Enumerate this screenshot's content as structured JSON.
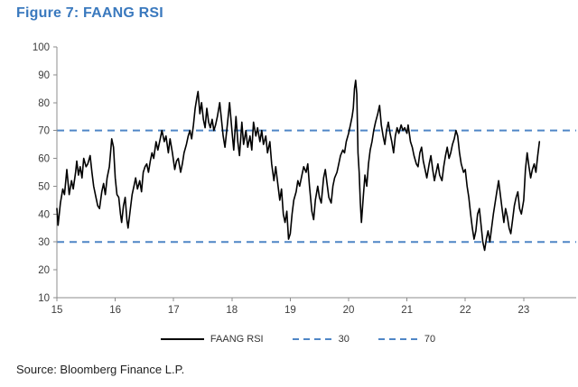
{
  "title": "Figure 7: FAANG RSI",
  "source": "Source: Bloomberg Finance L.P.",
  "legend": {
    "series_label": "FAANG RSI",
    "lower_label": "30",
    "upper_label": "70"
  },
  "colors": {
    "title": "#3A79BE",
    "series": "#000000",
    "threshold": "#4F86C6",
    "axis": "#8C8C8C",
    "tick_label": "#3d3d3d"
  },
  "chart_data": {
    "type": "line",
    "title": "FAANG RSI",
    "grid": false,
    "legend_position": "bottom",
    "x_axis": {
      "min": 15,
      "max": 23.9,
      "ticks": [
        15,
        16,
        17,
        18,
        19,
        20,
        21,
        22,
        23
      ]
    },
    "y_axis": {
      "min": 10,
      "max": 100,
      "ticks": [
        10,
        20,
        30,
        40,
        50,
        60,
        70,
        80,
        90,
        100
      ]
    },
    "thresholds": [
      {
        "value": 30,
        "label": "30"
      },
      {
        "value": 70,
        "label": "70"
      }
    ],
    "series": [
      {
        "name": "FAANG RSI",
        "points": [
          [
            15.0,
            42
          ],
          [
            15.02,
            36
          ],
          [
            15.06,
            44
          ],
          [
            15.1,
            49
          ],
          [
            15.13,
            47
          ],
          [
            15.17,
            56
          ],
          [
            15.21,
            47
          ],
          [
            15.25,
            52
          ],
          [
            15.28,
            49
          ],
          [
            15.32,
            55
          ],
          [
            15.34,
            59
          ],
          [
            15.37,
            54
          ],
          [
            15.4,
            57
          ],
          [
            15.43,
            53
          ],
          [
            15.46,
            60
          ],
          [
            15.5,
            57
          ],
          [
            15.53,
            58
          ],
          [
            15.57,
            61
          ],
          [
            15.6,
            55
          ],
          [
            15.63,
            50
          ],
          [
            15.66,
            47
          ],
          [
            15.7,
            43
          ],
          [
            15.73,
            42
          ],
          [
            15.77,
            48
          ],
          [
            15.8,
            51
          ],
          [
            15.83,
            47
          ],
          [
            15.86,
            53
          ],
          [
            15.9,
            57
          ],
          [
            15.94,
            67
          ],
          [
            15.97,
            64
          ],
          [
            16.0,
            53
          ],
          [
            16.03,
            47
          ],
          [
            16.06,
            46
          ],
          [
            16.09,
            40
          ],
          [
            16.11,
            37
          ],
          [
            16.14,
            43
          ],
          [
            16.17,
            46
          ],
          [
            16.2,
            38
          ],
          [
            16.22,
            35
          ],
          [
            16.26,
            42
          ],
          [
            16.29,
            47
          ],
          [
            16.32,
            50
          ],
          [
            16.35,
            53
          ],
          [
            16.38,
            49
          ],
          [
            16.42,
            52
          ],
          [
            16.45,
            48
          ],
          [
            16.48,
            55
          ],
          [
            16.51,
            57
          ],
          [
            16.54,
            58
          ],
          [
            16.57,
            55
          ],
          [
            16.6,
            59
          ],
          [
            16.63,
            62
          ],
          [
            16.66,
            60
          ],
          [
            16.7,
            66
          ],
          [
            16.73,
            63
          ],
          [
            16.77,
            67
          ],
          [
            16.8,
            70
          ],
          [
            16.84,
            66
          ],
          [
            16.87,
            68
          ],
          [
            16.91,
            62
          ],
          [
            16.94,
            67
          ],
          [
            16.98,
            62
          ],
          [
            17.02,
            56
          ],
          [
            17.05,
            59
          ],
          [
            17.08,
            60
          ],
          [
            17.12,
            55
          ],
          [
            17.15,
            58
          ],
          [
            17.18,
            62
          ],
          [
            17.22,
            65
          ],
          [
            17.25,
            68
          ],
          [
            17.28,
            70
          ],
          [
            17.31,
            67
          ],
          [
            17.34,
            72
          ],
          [
            17.37,
            78
          ],
          [
            17.4,
            82
          ],
          [
            17.42,
            84
          ],
          [
            17.45,
            76
          ],
          [
            17.48,
            80
          ],
          [
            17.51,
            74
          ],
          [
            17.54,
            71
          ],
          [
            17.57,
            78
          ],
          [
            17.6,
            73
          ],
          [
            17.63,
            71
          ],
          [
            17.66,
            74
          ],
          [
            17.69,
            70
          ],
          [
            17.72,
            72
          ],
          [
            17.75,
            75
          ],
          [
            17.79,
            80
          ],
          [
            17.82,
            74
          ],
          [
            17.85,
            68
          ],
          [
            17.88,
            64
          ],
          [
            17.92,
            72
          ],
          [
            17.96,
            80
          ],
          [
            18.0,
            70
          ],
          [
            18.03,
            63
          ],
          [
            18.07,
            75
          ],
          [
            18.1,
            66
          ],
          [
            18.13,
            61
          ],
          [
            18.17,
            73
          ],
          [
            18.2,
            65
          ],
          [
            18.24,
            70
          ],
          [
            18.27,
            64
          ],
          [
            18.31,
            68
          ],
          [
            18.34,
            63
          ],
          [
            18.37,
            73
          ],
          [
            18.41,
            68
          ],
          [
            18.44,
            71
          ],
          [
            18.48,
            66
          ],
          [
            18.51,
            70
          ],
          [
            18.54,
            65
          ],
          [
            18.58,
            68
          ],
          [
            18.61,
            62
          ],
          [
            18.65,
            66
          ],
          [
            18.68,
            58
          ],
          [
            18.72,
            52
          ],
          [
            18.75,
            57
          ],
          [
            18.79,
            50
          ],
          [
            18.82,
            45
          ],
          [
            18.85,
            49
          ],
          [
            18.88,
            40
          ],
          [
            18.91,
            37
          ],
          [
            18.94,
            41
          ],
          [
            18.97,
            31
          ],
          [
            19.0,
            33
          ],
          [
            19.03,
            40
          ],
          [
            19.06,
            45
          ],
          [
            19.1,
            48
          ],
          [
            19.13,
            52
          ],
          [
            19.16,
            50
          ],
          [
            19.2,
            54
          ],
          [
            19.23,
            57
          ],
          [
            19.27,
            55
          ],
          [
            19.3,
            58
          ],
          [
            19.33,
            50
          ],
          [
            19.37,
            41
          ],
          [
            19.4,
            38
          ],
          [
            19.43,
            45
          ],
          [
            19.47,
            50
          ],
          [
            19.5,
            46
          ],
          [
            19.53,
            44
          ],
          [
            19.57,
            53
          ],
          [
            19.6,
            56
          ],
          [
            19.63,
            51
          ],
          [
            19.66,
            46
          ],
          [
            19.7,
            44
          ],
          [
            19.73,
            50
          ],
          [
            19.76,
            53
          ],
          [
            19.8,
            55
          ],
          [
            19.83,
            58
          ],
          [
            19.86,
            61
          ],
          [
            19.9,
            63
          ],
          [
            19.93,
            62
          ],
          [
            19.96,
            66
          ],
          [
            20.0,
            69
          ],
          [
            20.03,
            72
          ],
          [
            20.06,
            75
          ],
          [
            20.08,
            78
          ],
          [
            20.1,
            85
          ],
          [
            20.12,
            88
          ],
          [
            20.14,
            83
          ],
          [
            20.16,
            62
          ],
          [
            20.18,
            55
          ],
          [
            20.2,
            44
          ],
          [
            20.22,
            37
          ],
          [
            20.25,
            46
          ],
          [
            20.28,
            54
          ],
          [
            20.31,
            50
          ],
          [
            20.34,
            58
          ],
          [
            20.37,
            63
          ],
          [
            20.4,
            66
          ],
          [
            20.43,
            70
          ],
          [
            20.46,
            73
          ],
          [
            20.5,
            76
          ],
          [
            20.53,
            79
          ],
          [
            20.56,
            72
          ],
          [
            20.59,
            68
          ],
          [
            20.62,
            65
          ],
          [
            20.65,
            70
          ],
          [
            20.68,
            73
          ],
          [
            20.71,
            69
          ],
          [
            20.74,
            66
          ],
          [
            20.77,
            62
          ],
          [
            20.8,
            68
          ],
          [
            20.83,
            71
          ],
          [
            20.86,
            69
          ],
          [
            20.9,
            72
          ],
          [
            20.93,
            70
          ],
          [
            20.96,
            71
          ],
          [
            21.0,
            69
          ],
          [
            21.02,
            72
          ],
          [
            21.06,
            66
          ],
          [
            21.09,
            64
          ],
          [
            21.12,
            61
          ],
          [
            21.16,
            58
          ],
          [
            21.19,
            57
          ],
          [
            21.22,
            62
          ],
          [
            21.25,
            64
          ],
          [
            21.28,
            59
          ],
          [
            21.31,
            56
          ],
          [
            21.34,
            53
          ],
          [
            21.38,
            58
          ],
          [
            21.41,
            61
          ],
          [
            21.44,
            56
          ],
          [
            21.47,
            52
          ],
          [
            21.5,
            55
          ],
          [
            21.53,
            58
          ],
          [
            21.56,
            54
          ],
          [
            21.6,
            52
          ],
          [
            21.63,
            57
          ],
          [
            21.66,
            61
          ],
          [
            21.69,
            64
          ],
          [
            21.72,
            60
          ],
          [
            21.75,
            62
          ],
          [
            21.78,
            65
          ],
          [
            21.81,
            67
          ],
          [
            21.84,
            70
          ],
          [
            21.87,
            68
          ],
          [
            21.9,
            62
          ],
          [
            21.93,
            58
          ],
          [
            21.97,
            55
          ],
          [
            22.0,
            56
          ],
          [
            22.03,
            50
          ],
          [
            22.06,
            46
          ],
          [
            22.09,
            40
          ],
          [
            22.12,
            35
          ],
          [
            22.15,
            31
          ],
          [
            22.18,
            34
          ],
          [
            22.21,
            40
          ],
          [
            22.24,
            42
          ],
          [
            22.27,
            36
          ],
          [
            22.3,
            30
          ],
          [
            22.33,
            27
          ],
          [
            22.36,
            31
          ],
          [
            22.39,
            34
          ],
          [
            22.42,
            30
          ],
          [
            22.45,
            35
          ],
          [
            22.48,
            40
          ],
          [
            22.51,
            44
          ],
          [
            22.54,
            48
          ],
          [
            22.57,
            52
          ],
          [
            22.6,
            47
          ],
          [
            22.63,
            42
          ],
          [
            22.66,
            37
          ],
          [
            22.69,
            42
          ],
          [
            22.72,
            39
          ],
          [
            22.75,
            35
          ],
          [
            22.78,
            33
          ],
          [
            22.81,
            38
          ],
          [
            22.84,
            43
          ],
          [
            22.87,
            46
          ],
          [
            22.9,
            48
          ],
          [
            22.93,
            42
          ],
          [
            22.96,
            40
          ],
          [
            23.0,
            45
          ],
          [
            23.03,
            56
          ],
          [
            23.06,
            62
          ],
          [
            23.09,
            57
          ],
          [
            23.12,
            53
          ],
          [
            23.15,
            56
          ],
          [
            23.18,
            58
          ],
          [
            23.21,
            55
          ],
          [
            23.24,
            61
          ],
          [
            23.27,
            66
          ]
        ]
      }
    ]
  }
}
